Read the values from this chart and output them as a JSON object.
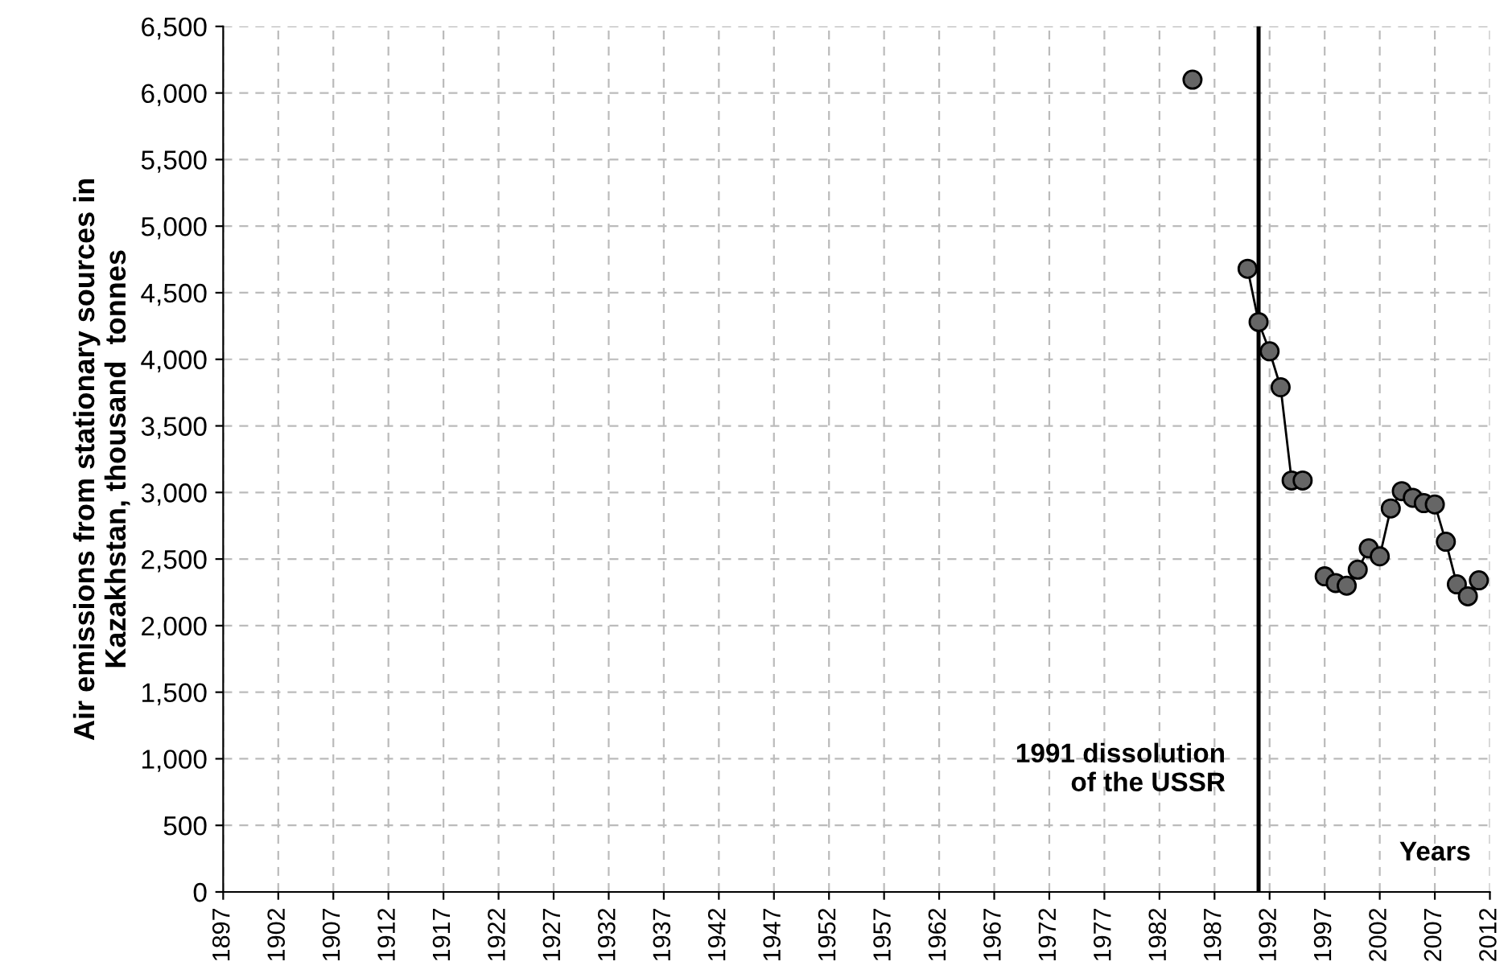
{
  "chart_data": {
    "type": "line",
    "ylabel": "Air emissions from stationary sources in\nKazakhstan, thousand  tonnes",
    "xlabel": "Years",
    "x": [
      1985,
      1986,
      1987,
      1988,
      1989,
      1990,
      1991,
      1992,
      1993,
      1994,
      1995,
      1996,
      1997,
      1998,
      1999,
      2000,
      2001,
      2002,
      2003,
      2004,
      2005,
      2006,
      2007,
      2008,
      2009,
      2010,
      2011
    ],
    "series": [
      {
        "color": "#666666",
        "values": [
          6100,
          null,
          null,
          null,
          null,
          4680,
          4280,
          4060,
          3790,
          3090,
          3090,
          null,
          2370,
          2320,
          2300,
          2420,
          2580,
          2520,
          2880,
          3010,
          2960,
          2920,
          2910,
          2630,
          2310,
          2220,
          2340
        ]
      }
    ],
    "marker": "circle",
    "line_style": "solid",
    "grid": true,
    "legend": false,
    "xlim": [
      1897,
      2012
    ],
    "xticks": [
      1897,
      1902,
      1907,
      1912,
      1917,
      1922,
      1927,
      1932,
      1937,
      1942,
      1947,
      1952,
      1957,
      1962,
      1967,
      1972,
      1977,
      1982,
      1987,
      1992,
      1997,
      2002,
      2007,
      2012
    ],
    "ylim": [
      0,
      6500
    ],
    "yticks": [
      0,
      500,
      {
        "value": 1000,
        "label": "1,000"
      },
      {
        "value": 1500,
        "label": "1,500"
      },
      {
        "value": 2000,
        "label": "2,000"
      },
      {
        "value": 2500,
        "label": "2,500"
      },
      {
        "value": 3000,
        "label": "3,000"
      },
      {
        "value": 3500,
        "label": "3,500"
      },
      {
        "value": 4000,
        "label": "4,000"
      },
      {
        "value": 4500,
        "label": "4,500"
      },
      {
        "value": 5000,
        "label": "5,000"
      },
      {
        "value": 5500,
        "label": "5,500"
      },
      {
        "value": 6000,
        "label": "6,000"
      },
      {
        "value": 6500,
        "label": "6,500"
      }
    ],
    "ref_lines": [
      {
        "axis": "x",
        "value": 1991,
        "label": "1991 dissolution\nof the USSR",
        "color": "#000000",
        "line_style": "solid"
      }
    ]
  }
}
